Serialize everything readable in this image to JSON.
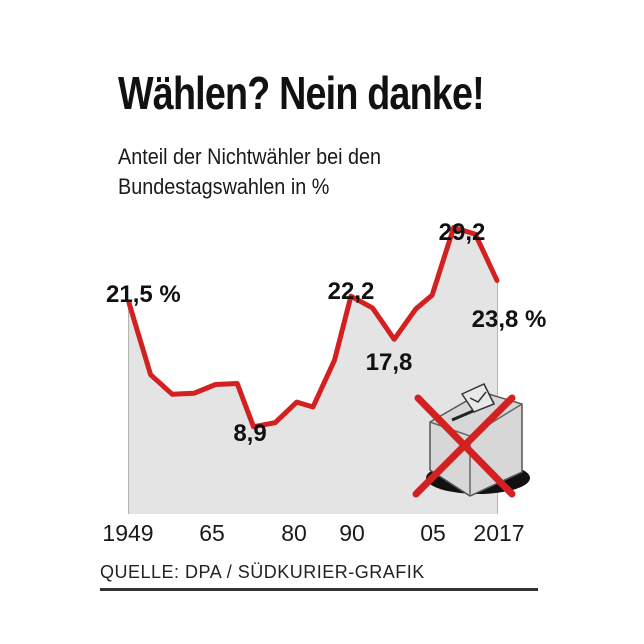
{
  "chart_data": {
    "type": "area",
    "title": "Wählen? Nein danke!",
    "subtitle": "Anteil der Nichtwähler bei den Bundestagswahlen in %",
    "x": [
      1949,
      1953,
      1957,
      1961,
      1965,
      1969,
      1972,
      1976,
      1980,
      1983,
      1987,
      1990,
      1994,
      1998,
      2002,
      2005,
      2009,
      2013,
      2017
    ],
    "values": [
      21.5,
      14.2,
      12.2,
      12.3,
      13.2,
      13.3,
      8.9,
      9.3,
      11.4,
      10.9,
      15.7,
      22.2,
      21.0,
      17.8,
      20.9,
      22.3,
      29.2,
      28.5,
      23.8
    ],
    "ylim": [
      0,
      32
    ],
    "xticks": [
      "1949",
      "65",
      "80",
      "90",
      "05",
      "2017"
    ],
    "series_color": "#d32020",
    "area_color": "#e4e4e4",
    "annotations": [
      {
        "text": "21,5 %",
        "x": 1949
      },
      {
        "text": "8,9",
        "x": 1972
      },
      {
        "text": "22,2",
        "x": 1990
      },
      {
        "text": "17,8",
        "x": 1998
      },
      {
        "text": "29,2",
        "x": 2009
      },
      {
        "text": "23,8 %",
        "x": 2017
      }
    ],
    "source": "QUELLE: DPA / SÜDKURIER-GRAFIK"
  }
}
